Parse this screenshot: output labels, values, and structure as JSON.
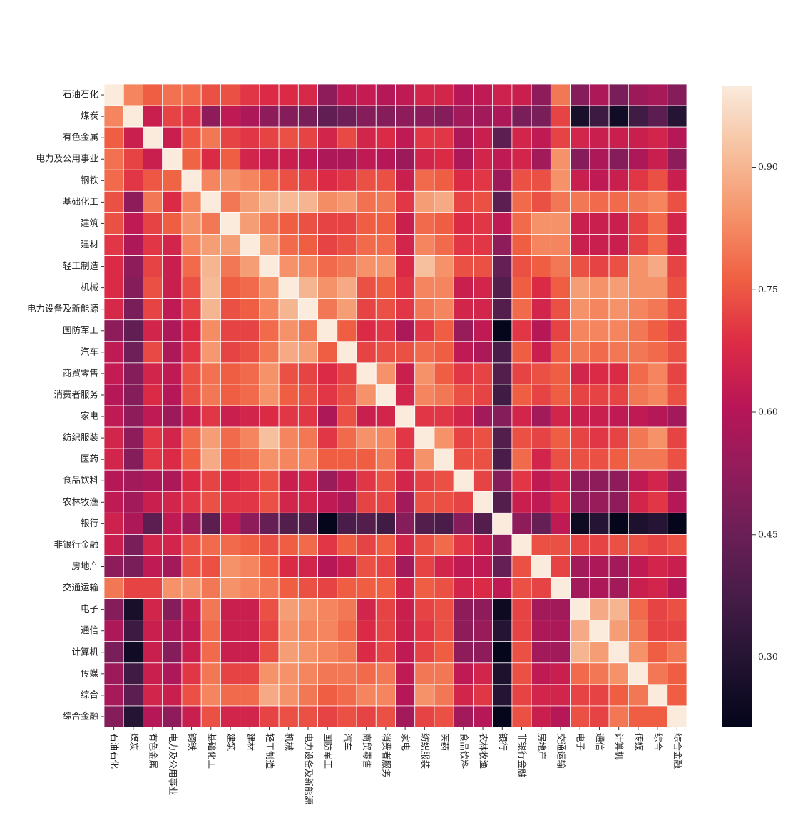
{
  "chart_data": {
    "type": "heatmap",
    "x_categories": [
      "石油石化",
      "煤炭",
      "有色金属",
      "电力及公用事业",
      "钢铁",
      "基础化工",
      "建筑",
      "建材",
      "轻工制造",
      "机械",
      "电力设备及新能源",
      "国防军工",
      "汽车",
      "商贸零售",
      "消费者服务",
      "家电",
      "纺织服装",
      "医药",
      "食品饮料",
      "农林牧渔",
      "银行",
      "非银行金融",
      "房地产",
      "交通运输",
      "电子",
      "通信",
      "计算机",
      "传媒",
      "综合",
      "综合金融"
    ],
    "y_categories": [
      "石油石化",
      "煤炭",
      "有色金属",
      "电力及公用事业",
      "钢铁",
      "基础化工",
      "建筑",
      "建材",
      "轻工制造",
      "机械",
      "电力设备及新能源",
      "国防军工",
      "汽车",
      "商贸零售",
      "消费者服务",
      "家电",
      "纺织服装",
      "医药",
      "食品饮料",
      "农林牧渔",
      "银行",
      "非银行金融",
      "房地产",
      "交通运输",
      "电子",
      "通信",
      "计算机",
      "传媒",
      "综合",
      "综合金融"
    ],
    "values": [
      [
        1,
        0.82,
        0.76,
        0.79,
        0.78,
        0.74,
        0.74,
        0.7,
        0.68,
        0.68,
        0.67,
        0.52,
        0.62,
        0.63,
        0.6,
        0.62,
        0.66,
        0.66,
        0.6,
        0.62,
        0.65,
        0.64,
        0.52,
        0.8,
        0.5,
        0.58,
        0.48,
        0.55,
        0.57,
        0.5
      ],
      [
        0.82,
        1,
        0.64,
        0.72,
        0.7,
        0.52,
        0.62,
        0.58,
        0.52,
        0.5,
        0.48,
        0.43,
        0.46,
        0.5,
        0.5,
        0.52,
        0.52,
        0.5,
        0.56,
        0.56,
        0.58,
        0.48,
        0.48,
        0.72,
        0.27,
        0.35,
        0.25,
        0.36,
        0.42,
        0.3
      ],
      [
        0.76,
        0.64,
        1,
        0.64,
        0.75,
        0.8,
        0.72,
        0.7,
        0.72,
        0.74,
        0.72,
        0.66,
        0.73,
        0.66,
        0.68,
        0.62,
        0.7,
        0.7,
        0.58,
        0.64,
        0.42,
        0.66,
        0.62,
        0.72,
        0.66,
        0.64,
        0.64,
        0.64,
        0.66,
        0.6
      ],
      [
        0.79,
        0.72,
        0.64,
        1,
        0.77,
        0.68,
        0.76,
        0.66,
        0.64,
        0.64,
        0.62,
        0.58,
        0.58,
        0.62,
        0.6,
        0.55,
        0.66,
        0.68,
        0.58,
        0.66,
        0.62,
        0.66,
        0.56,
        0.84,
        0.5,
        0.58,
        0.5,
        0.58,
        0.64,
        0.52
      ],
      [
        0.78,
        0.7,
        0.75,
        0.77,
        1,
        0.82,
        0.84,
        0.82,
        0.78,
        0.74,
        0.72,
        0.68,
        0.7,
        0.74,
        0.74,
        0.64,
        0.78,
        0.76,
        0.68,
        0.7,
        0.55,
        0.74,
        0.74,
        0.84,
        0.64,
        0.62,
        0.64,
        0.7,
        0.74,
        0.64
      ],
      [
        0.74,
        0.52,
        0.8,
        0.68,
        0.82,
        1,
        0.8,
        0.86,
        0.9,
        0.91,
        0.9,
        0.83,
        0.85,
        0.79,
        0.8,
        0.7,
        0.86,
        0.88,
        0.72,
        0.74,
        0.42,
        0.78,
        0.74,
        0.8,
        0.8,
        0.78,
        0.78,
        0.8,
        0.82,
        0.74
      ],
      [
        0.74,
        0.62,
        0.72,
        0.76,
        0.84,
        0.8,
        1,
        0.86,
        0.8,
        0.76,
        0.74,
        0.72,
        0.72,
        0.76,
        0.76,
        0.64,
        0.78,
        0.76,
        0.68,
        0.7,
        0.62,
        0.78,
        0.84,
        0.84,
        0.64,
        0.64,
        0.64,
        0.72,
        0.78,
        0.66
      ],
      [
        0.7,
        0.58,
        0.7,
        0.66,
        0.82,
        0.86,
        0.86,
        1,
        0.86,
        0.78,
        0.76,
        0.72,
        0.74,
        0.78,
        0.78,
        0.66,
        0.82,
        0.78,
        0.7,
        0.7,
        0.52,
        0.76,
        0.82,
        0.82,
        0.64,
        0.64,
        0.64,
        0.72,
        0.78,
        0.66
      ],
      [
        0.68,
        0.52,
        0.72,
        0.64,
        0.78,
        0.9,
        0.8,
        0.86,
        1,
        0.84,
        0.82,
        0.78,
        0.8,
        0.84,
        0.84,
        0.68,
        0.92,
        0.84,
        0.74,
        0.74,
        0.44,
        0.74,
        0.76,
        0.8,
        0.74,
        0.72,
        0.74,
        0.84,
        0.88,
        0.72
      ],
      [
        0.68,
        0.5,
        0.74,
        0.64,
        0.74,
        0.91,
        0.76,
        0.78,
        0.84,
        1,
        0.9,
        0.84,
        0.88,
        0.74,
        0.76,
        0.7,
        0.82,
        0.82,
        0.64,
        0.66,
        0.4,
        0.76,
        0.68,
        0.76,
        0.86,
        0.84,
        0.86,
        0.84,
        0.84,
        0.74
      ],
      [
        0.67,
        0.48,
        0.72,
        0.62,
        0.72,
        0.9,
        0.74,
        0.76,
        0.82,
        0.9,
        1,
        0.8,
        0.86,
        0.72,
        0.74,
        0.7,
        0.8,
        0.82,
        0.66,
        0.66,
        0.4,
        0.78,
        0.66,
        0.74,
        0.84,
        0.82,
        0.84,
        0.82,
        0.8,
        0.74
      ],
      [
        0.52,
        0.43,
        0.66,
        0.58,
        0.68,
        0.83,
        0.72,
        0.72,
        0.78,
        0.84,
        0.8,
        1,
        0.76,
        0.68,
        0.7,
        0.58,
        0.7,
        0.76,
        0.54,
        0.62,
        0.22,
        0.7,
        0.6,
        0.72,
        0.82,
        0.82,
        0.82,
        0.8,
        0.76,
        0.72
      ],
      [
        0.62,
        0.46,
        0.73,
        0.58,
        0.7,
        0.85,
        0.72,
        0.74,
        0.8,
        0.88,
        0.86,
        0.76,
        1,
        0.72,
        0.74,
        0.74,
        0.78,
        0.76,
        0.62,
        0.58,
        0.38,
        0.76,
        0.64,
        0.76,
        0.8,
        0.78,
        0.8,
        0.8,
        0.78,
        0.74
      ],
      [
        0.63,
        0.5,
        0.66,
        0.62,
        0.74,
        0.79,
        0.76,
        0.78,
        0.84,
        0.74,
        0.72,
        0.68,
        0.72,
        1,
        0.84,
        0.64,
        0.84,
        0.76,
        0.7,
        0.72,
        0.4,
        0.72,
        0.74,
        0.76,
        0.66,
        0.68,
        0.68,
        0.78,
        0.82,
        0.72
      ],
      [
        0.6,
        0.5,
        0.68,
        0.6,
        0.74,
        0.8,
        0.76,
        0.78,
        0.84,
        0.76,
        0.74,
        0.7,
        0.74,
        0.84,
        1,
        0.66,
        0.82,
        0.8,
        0.74,
        0.72,
        0.36,
        0.76,
        0.72,
        0.76,
        0.72,
        0.72,
        0.72,
        0.8,
        0.82,
        0.74
      ],
      [
        0.62,
        0.52,
        0.62,
        0.55,
        0.64,
        0.7,
        0.64,
        0.66,
        0.68,
        0.7,
        0.7,
        0.58,
        0.74,
        0.64,
        0.66,
        1,
        0.7,
        0.7,
        0.66,
        0.56,
        0.5,
        0.66,
        0.56,
        0.66,
        0.64,
        0.64,
        0.62,
        0.62,
        0.6,
        0.56
      ],
      [
        0.66,
        0.52,
        0.7,
        0.66,
        0.78,
        0.86,
        0.78,
        0.82,
        0.92,
        0.82,
        0.8,
        0.7,
        0.78,
        0.84,
        0.82,
        0.7,
        1,
        0.84,
        0.72,
        0.74,
        0.4,
        0.74,
        0.72,
        0.76,
        0.72,
        0.7,
        0.72,
        0.8,
        0.84,
        0.72
      ],
      [
        0.66,
        0.5,
        0.7,
        0.68,
        0.76,
        0.88,
        0.76,
        0.78,
        0.84,
        0.82,
        0.82,
        0.76,
        0.76,
        0.76,
        0.8,
        0.7,
        0.84,
        1,
        0.74,
        0.74,
        0.38,
        0.78,
        0.66,
        0.74,
        0.74,
        0.74,
        0.76,
        0.8,
        0.8,
        0.74
      ],
      [
        0.6,
        0.56,
        0.58,
        0.58,
        0.68,
        0.72,
        0.68,
        0.7,
        0.74,
        0.64,
        0.66,
        0.54,
        0.62,
        0.7,
        0.74,
        0.66,
        0.72,
        0.74,
        1,
        0.72,
        0.5,
        0.7,
        0.62,
        0.66,
        0.52,
        0.52,
        0.52,
        0.62,
        0.66,
        0.56
      ],
      [
        0.62,
        0.56,
        0.64,
        0.66,
        0.7,
        0.74,
        0.7,
        0.7,
        0.74,
        0.66,
        0.66,
        0.62,
        0.58,
        0.72,
        0.72,
        0.56,
        0.74,
        0.74,
        0.72,
        1,
        0.4,
        0.64,
        0.62,
        0.68,
        0.52,
        0.54,
        0.52,
        0.66,
        0.7,
        0.6
      ],
      [
        0.65,
        0.58,
        0.42,
        0.62,
        0.55,
        0.42,
        0.62,
        0.52,
        0.44,
        0.4,
        0.4,
        0.22,
        0.38,
        0.4,
        0.36,
        0.5,
        0.4,
        0.38,
        0.5,
        0.4,
        1,
        0.52,
        0.44,
        0.62,
        0.24,
        0.3,
        0.22,
        0.28,
        0.3,
        0.22
      ],
      [
        0.64,
        0.48,
        0.66,
        0.66,
        0.74,
        0.78,
        0.78,
        0.76,
        0.74,
        0.76,
        0.78,
        0.7,
        0.76,
        0.72,
        0.76,
        0.66,
        0.74,
        0.78,
        0.7,
        0.64,
        0.52,
        1,
        0.74,
        0.74,
        0.72,
        0.72,
        0.74,
        0.74,
        0.72,
        0.74
      ],
      [
        0.52,
        0.48,
        0.62,
        0.56,
        0.74,
        0.74,
        0.84,
        0.82,
        0.76,
        0.68,
        0.66,
        0.6,
        0.64,
        0.74,
        0.72,
        0.56,
        0.72,
        0.66,
        0.62,
        0.62,
        0.44,
        0.74,
        1,
        0.72,
        0.56,
        0.58,
        0.56,
        0.62,
        0.66,
        0.64
      ],
      [
        0.8,
        0.72,
        0.72,
        0.84,
        0.84,
        0.8,
        0.84,
        0.82,
        0.8,
        0.76,
        0.74,
        0.72,
        0.76,
        0.76,
        0.76,
        0.66,
        0.76,
        0.74,
        0.66,
        0.68,
        0.62,
        0.74,
        0.72,
        1,
        0.56,
        0.58,
        0.56,
        0.64,
        0.66,
        0.6
      ],
      [
        0.5,
        0.27,
        0.66,
        0.5,
        0.64,
        0.8,
        0.64,
        0.64,
        0.74,
        0.86,
        0.84,
        0.82,
        0.8,
        0.66,
        0.72,
        0.64,
        0.72,
        0.74,
        0.52,
        0.52,
        0.24,
        0.72,
        0.56,
        0.56,
        1,
        0.88,
        0.9,
        0.78,
        0.72,
        0.74
      ],
      [
        0.58,
        0.35,
        0.64,
        0.58,
        0.62,
        0.78,
        0.64,
        0.64,
        0.72,
        0.84,
        0.82,
        0.82,
        0.78,
        0.68,
        0.72,
        0.64,
        0.7,
        0.74,
        0.52,
        0.54,
        0.3,
        0.72,
        0.58,
        0.58,
        0.88,
        1,
        0.86,
        0.8,
        0.72,
        0.72
      ],
      [
        0.48,
        0.25,
        0.64,
        0.5,
        0.64,
        0.78,
        0.64,
        0.64,
        0.74,
        0.86,
        0.84,
        0.82,
        0.8,
        0.68,
        0.72,
        0.62,
        0.72,
        0.76,
        0.52,
        0.52,
        0.22,
        0.74,
        0.56,
        0.56,
        0.9,
        0.86,
        1,
        0.84,
        0.76,
        0.8
      ],
      [
        0.55,
        0.36,
        0.64,
        0.58,
        0.7,
        0.8,
        0.72,
        0.72,
        0.84,
        0.84,
        0.82,
        0.8,
        0.8,
        0.78,
        0.8,
        0.62,
        0.8,
        0.8,
        0.62,
        0.66,
        0.28,
        0.74,
        0.62,
        0.64,
        0.78,
        0.8,
        0.84,
        1,
        0.8,
        0.76
      ],
      [
        0.57,
        0.42,
        0.66,
        0.64,
        0.74,
        0.82,
        0.78,
        0.78,
        0.88,
        0.84,
        0.8,
        0.76,
        0.78,
        0.82,
        0.82,
        0.6,
        0.84,
        0.8,
        0.66,
        0.7,
        0.3,
        0.72,
        0.66,
        0.66,
        0.72,
        0.72,
        0.76,
        0.8,
        1,
        0.76
      ],
      [
        0.5,
        0.3,
        0.6,
        0.52,
        0.64,
        0.74,
        0.66,
        0.66,
        0.72,
        0.74,
        0.74,
        0.72,
        0.74,
        0.72,
        0.74,
        0.56,
        0.72,
        0.74,
        0.56,
        0.6,
        0.22,
        0.74,
        0.64,
        0.6,
        0.74,
        0.72,
        0.8,
        0.76,
        0.76,
        1
      ]
    ],
    "colormap": "rocket",
    "clim": [
      0.214,
      1.0
    ],
    "cticks": [
      {
        "value": 0.3,
        "label": "0.30"
      },
      {
        "value": 0.45,
        "label": "0.45"
      },
      {
        "value": 0.6,
        "label": "0.60"
      },
      {
        "value": 0.75,
        "label": "0.75"
      },
      {
        "value": 0.9,
        "label": "0.90"
      }
    ]
  }
}
